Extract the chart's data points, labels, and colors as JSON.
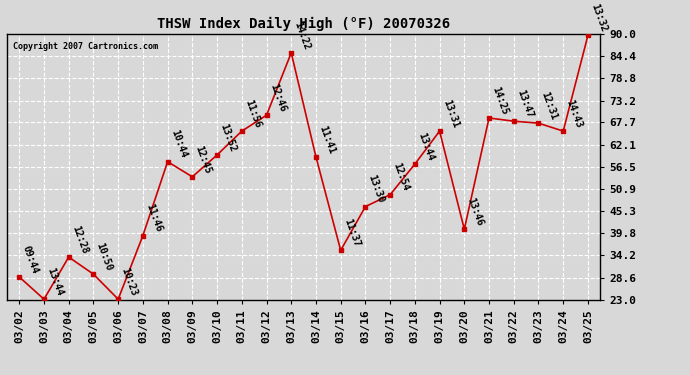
{
  "title": "THSW Index Daily High (°F) 20070326",
  "copyright": "Copyright 2007 Cartronics.com",
  "dates": [
    "03/02",
    "03/03",
    "03/04",
    "03/05",
    "03/06",
    "03/07",
    "03/08",
    "03/09",
    "03/10",
    "03/11",
    "03/12",
    "03/13",
    "03/14",
    "03/15",
    "03/16",
    "03/17",
    "03/18",
    "03/19",
    "03/20",
    "03/21",
    "03/22",
    "03/23",
    "03/24",
    "03/25"
  ],
  "values": [
    28.8,
    23.2,
    33.8,
    29.5,
    23.2,
    39.2,
    57.8,
    54.0,
    59.5,
    65.5,
    69.5,
    85.2,
    59.0,
    35.5,
    46.5,
    49.5,
    57.2,
    65.5,
    40.8,
    68.8,
    68.0,
    67.5,
    65.5,
    89.6
  ],
  "labels": [
    "09:44",
    "13:44",
    "12:28",
    "10:50",
    "10:23",
    "11:46",
    "10:44",
    "12:45",
    "13:52",
    "11:56",
    "12:46",
    "14:22",
    "11:41",
    "11:37",
    "13:30",
    "12:54",
    "13:44",
    "13:31",
    "13:46",
    "14:25",
    "13:47",
    "12:31",
    "14:43",
    "13:32"
  ],
  "ylim": [
    23.0,
    90.0
  ],
  "yticks": [
    23.0,
    28.6,
    34.2,
    39.8,
    45.3,
    50.9,
    56.5,
    62.1,
    67.7,
    73.2,
    78.8,
    84.4,
    90.0
  ],
  "ytick_labels": [
    "23.0",
    "28.6",
    "34.2",
    "39.8",
    "45.3",
    "50.9",
    "56.5",
    "62.1",
    "67.7",
    "73.2",
    "78.8",
    "84.4",
    "90.0"
  ],
  "line_color": "#cc0000",
  "marker_color": "#cc0000",
  "bg_color": "#d8d8d8",
  "grid_color": "#ffffff",
  "label_fontsize": 7,
  "title_fontsize": 10,
  "tick_fontsize": 8
}
